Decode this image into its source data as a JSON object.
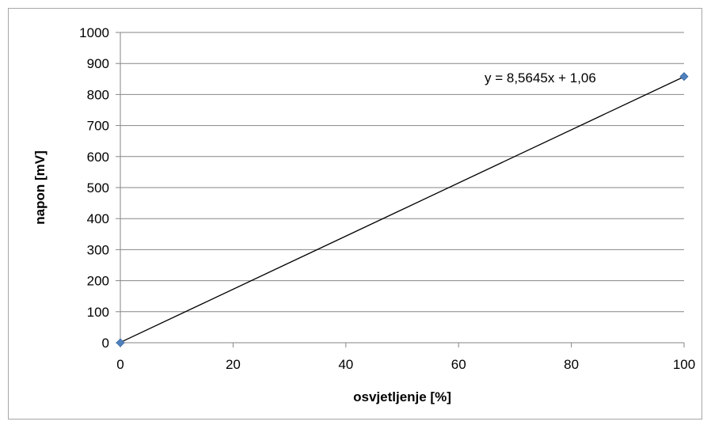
{
  "chart_data": {
    "type": "scatter",
    "title": "",
    "xlabel": "osvjetljenje [%]",
    "ylabel": "napon [mV]",
    "xlim": [
      0,
      100
    ],
    "ylim": [
      0,
      1000
    ],
    "xticks": [
      0,
      20,
      40,
      60,
      80,
      100
    ],
    "yticks": [
      0,
      100,
      200,
      300,
      400,
      500,
      600,
      700,
      800,
      900,
      1000
    ],
    "grid": "horizontal",
    "legend": "none",
    "series": [
      {
        "x": [
          0,
          100
        ],
        "y": [
          0,
          858
        ],
        "marker": "diamond",
        "color": "#4f81bd"
      }
    ],
    "trendline": {
      "type": "linear",
      "slope": 8.5645,
      "intercept": 1.06,
      "color": "#000000",
      "equation_label": "y = 8,5645x + 1,06"
    }
  }
}
